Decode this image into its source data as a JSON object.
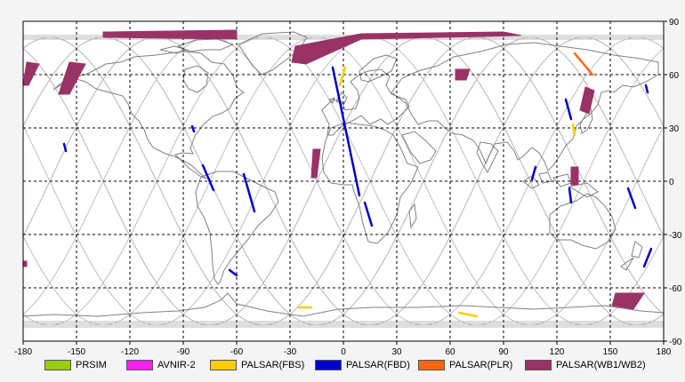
{
  "map": {
    "x_ticks": [
      "-180",
      "-150",
      "-120",
      "-90",
      "-60",
      "-30",
      "0",
      "30",
      "60",
      "90",
      "120",
      "150",
      "180"
    ],
    "y_ticks": [
      "90",
      "60",
      "30",
      "0",
      "-30",
      "-60",
      "-90"
    ],
    "x_tick_values": [
      -180,
      -150,
      -120,
      -90,
      -60,
      -30,
      0,
      30,
      60,
      90,
      120,
      150,
      180
    ],
    "y_tick_values": [
      90,
      60,
      30,
      0,
      -30,
      -60,
      -90
    ],
    "lon_range": [
      -180,
      180
    ],
    "lat_range": [
      -90,
      90
    ],
    "grid": "dashed",
    "colors": {
      "coast": "#808080",
      "orbit": "#bdbdbd",
      "grid": "#000000"
    }
  },
  "legend": [
    {
      "label": "PRSIM",
      "color": "#99cc11"
    },
    {
      "label": "AVNIR-2",
      "color": "#ff22ee"
    },
    {
      "label": "PALSAR(FBS)",
      "color": "#ffcc00"
    },
    {
      "label": "PALSAR(FBD)",
      "color": "#0000cc"
    },
    {
      "label": "PALSAR(PLR)",
      "color": "#ff6611"
    },
    {
      "label": "PALSAR(WB1/WB2)",
      "color": "#993366"
    }
  ],
  "observations": [
    {
      "sensor": "PALSAR(WB1/WB2)",
      "polygon": [
        [
          -135,
          84
        ],
        [
          -60,
          85
        ],
        [
          -60,
          80
        ],
        [
          -135,
          81
        ]
      ]
    },
    {
      "sensor": "PALSAR(WB1/WB2)",
      "polygon": [
        [
          -27,
          76
        ],
        [
          10,
          83
        ],
        [
          90,
          84
        ],
        [
          100,
          82
        ],
        [
          10,
          80
        ],
        [
          -21,
          66
        ],
        [
          -29,
          67
        ]
      ]
    },
    {
      "sensor": "PALSAR(WB1/WB2)",
      "polygon": [
        [
          -178,
          67
        ],
        [
          -171,
          66
        ],
        [
          -177,
          54
        ],
        [
          -180,
          54
        ]
      ]
    },
    {
      "sensor": "PALSAR(WB1/WB2)",
      "polygon": [
        [
          -154,
          67
        ],
        [
          -145,
          66
        ],
        [
          -154,
          49
        ],
        [
          -160,
          49
        ]
      ]
    },
    {
      "sensor": "PALSAR(WB1/WB2)",
      "polygon": [
        [
          63,
          63
        ],
        [
          71,
          63
        ],
        [
          69,
          57
        ],
        [
          63,
          57
        ]
      ]
    },
    {
      "sensor": "PALSAR(WB1/WB2)",
      "polygon": [
        [
          136,
          53
        ],
        [
          141,
          51
        ],
        [
          138,
          38
        ],
        [
          133,
          40
        ]
      ]
    },
    {
      "sensor": "PALSAR(WB1/WB2)",
      "polygon": [
        [
          -17,
          18
        ],
        [
          -13,
          18
        ],
        [
          -15,
          2
        ],
        [
          -18,
          2
        ]
      ]
    },
    {
      "sensor": "PALSAR(WB1/WB2)",
      "polygon": [
        [
          128,
          8
        ],
        [
          132,
          8
        ],
        [
          132,
          -2
        ],
        [
          128,
          -2
        ]
      ]
    },
    {
      "sensor": "PALSAR(WB1/WB2)",
      "polygon": [
        [
          153,
          -63
        ],
        [
          169,
          -63
        ],
        [
          163,
          -72
        ],
        [
          151,
          -70
        ]
      ]
    },
    {
      "sensor": "PALSAR(WB1/WB2)",
      "polygon": [
        [
          -180,
          -45
        ],
        [
          -178,
          -45
        ],
        [
          -178,
          -48
        ],
        [
          -180,
          -48
        ]
      ]
    },
    {
      "sensor": "PALSAR(FBD)",
      "track": [
        [
          -6,
          64
        ],
        [
          9,
          -8
        ]
      ]
    },
    {
      "sensor": "PALSAR(FBD)",
      "track": [
        [
          -73,
          -5
        ],
        [
          -79,
          9
        ]
      ]
    },
    {
      "sensor": "PALSAR(FBD)",
      "track": [
        [
          -50,
          -17
        ],
        [
          -56,
          4
        ]
      ]
    },
    {
      "sensor": "PALSAR(FBD)",
      "track": [
        [
          -64,
          -50
        ],
        [
          -60,
          -53
        ]
      ]
    },
    {
      "sensor": "PALSAR(FBD)",
      "track": [
        [
          16,
          -25
        ],
        [
          12,
          -12
        ]
      ]
    },
    {
      "sensor": "PALSAR(FBD)",
      "track": [
        [
          125,
          46
        ],
        [
          128,
          35
        ]
      ]
    },
    {
      "sensor": "PALSAR(FBD)",
      "track": [
        [
          108,
          8
        ],
        [
          106,
          1
        ]
      ]
    },
    {
      "sensor": "PALSAR(FBD)",
      "track": [
        [
          164,
          -15
        ],
        [
          160,
          -4
        ]
      ]
    },
    {
      "sensor": "PALSAR(FBD)",
      "track": [
        [
          169,
          -48
        ],
        [
          173,
          -38
        ]
      ]
    },
    {
      "sensor": "PALSAR(FBD)",
      "track": [
        [
          -157,
          21
        ],
        [
          -156,
          17
        ]
      ]
    },
    {
      "sensor": "PALSAR(FBD)",
      "track": [
        [
          170,
          54
        ],
        [
          171,
          50
        ]
      ]
    },
    {
      "sensor": "PALSAR(FBD)",
      "track": [
        [
          -85,
          31
        ],
        [
          -84,
          28
        ]
      ]
    },
    {
      "sensor": "PALSAR(FBD)",
      "track": [
        [
          127,
          -4
        ],
        [
          128,
          -12
        ]
      ]
    },
    {
      "sensor": "PALSAR(FBS)",
      "track": [
        [
          1,
          64
        ],
        [
          -2,
          54
        ]
      ]
    },
    {
      "sensor": "PALSAR(FBS)",
      "track": [
        [
          129,
          32
        ],
        [
          130,
          26
        ]
      ]
    },
    {
      "sensor": "PALSAR(FBS)",
      "track": [
        [
          65,
          -74
        ],
        [
          75,
          -76
        ]
      ]
    },
    {
      "sensor": "PALSAR(FBS)",
      "track": [
        [
          -25,
          -71
        ],
        [
          -18,
          -71
        ]
      ]
    },
    {
      "sensor": "PALSAR(PLR)",
      "track": [
        [
          130,
          72
        ],
        [
          140,
          60
        ]
      ]
    }
  ]
}
